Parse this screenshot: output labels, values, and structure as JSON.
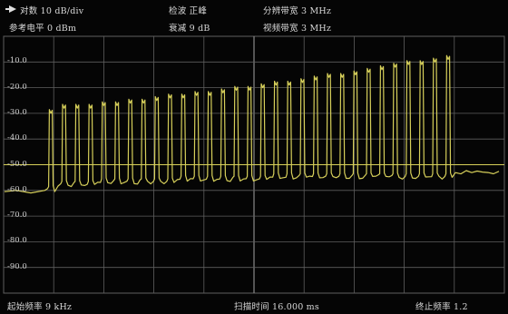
{
  "header": {
    "scale_label": "对数 10 dB/div",
    "ref_level_label": "参考电平 0 dBm",
    "detector_label": "检波 正峰",
    "attenuation_label": "衰减 9 dB",
    "rbw_label": "分辨带宽 3 MHz",
    "vbw_label": "视频带宽 3 MHz"
  },
  "footer": {
    "start_freq_label": "起始频率 9 kHz",
    "sweep_time_label": "扫描时间 16.000 ms",
    "stop_freq_label": "终止频率 1.2"
  },
  "y_axis_labels": [
    "-10.0",
    "-20.0",
    "-30.0",
    "-40.0",
    "-50.0",
    "-60.0",
    "-70.0",
    "-80.0",
    "-90.0"
  ],
  "colors": {
    "trace": "#d6cf5a",
    "grid": "#5f5f5f",
    "threshold_line": "#d8d05a",
    "background": "#050505"
  },
  "icons": {
    "marker": "marker-arrow-icon"
  },
  "chart_data": {
    "type": "line",
    "title": "",
    "xlabel": "",
    "ylabel": "",
    "ylim": [
      -100,
      0
    ],
    "x_divisions": 10,
    "y_divisions": 10,
    "threshold_dbm": -50,
    "grid": true,
    "series": [
      {
        "peaks_dbm": [
          -30,
          -28,
          -28,
          -28,
          -27,
          -27,
          -26,
          -26,
          -25,
          -24,
          -24,
          -23,
          -23,
          -22,
          -21,
          -21,
          -20,
          -19,
          -19,
          -18,
          -17,
          -16,
          -16,
          -15,
          -14,
          -13,
          -12,
          -11,
          -11,
          -10,
          -9
        ],
        "noise_floor_dbm": [
          -60,
          -58,
          -58,
          -58,
          -57,
          -57,
          -57,
          -57,
          -57,
          -57,
          -56,
          -56,
          -56,
          -56,
          -56,
          -56,
          -56,
          -55,
          -55,
          -55,
          -55,
          -55,
          -55,
          -55,
          -55,
          -55,
          -55,
          -55,
          -55,
          -55,
          -55
        ],
        "trace_end_floor_dbm": -53
      }
    ]
  }
}
